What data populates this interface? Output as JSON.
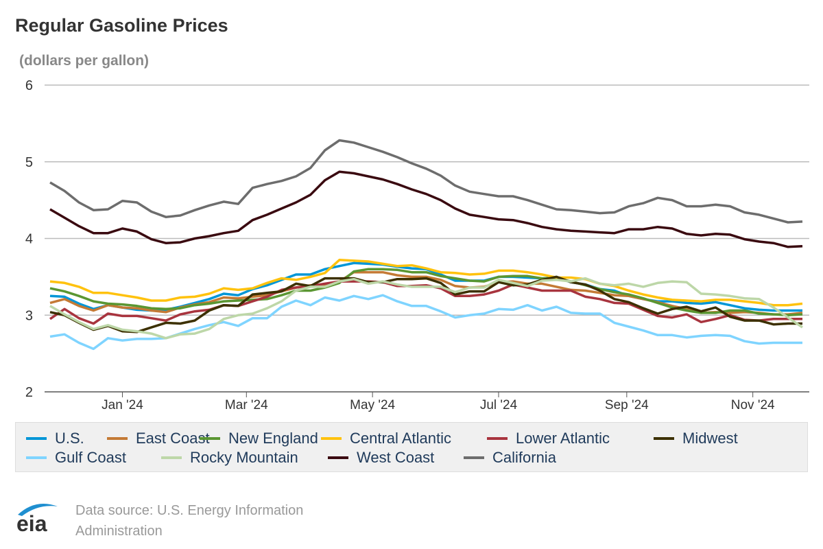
{
  "chart_data": {
    "type": "line",
    "title": "Regular Gasoline Prices",
    "ylabel": "(dollars per gallon)",
    "ylim": [
      2,
      6
    ],
    "yticks": [
      "2",
      "3",
      "4",
      "5",
      "6"
    ],
    "xticks": [
      {
        "date": "2024-01-01",
        "label": "Jan '24"
      },
      {
        "date": "2024-03-01",
        "label": "Mar '24"
      },
      {
        "date": "2024-05-01",
        "label": "May '24"
      },
      {
        "date": "2024-07-01",
        "label": "Jul '24"
      },
      {
        "date": "2024-09-01",
        "label": "Sep '24"
      },
      {
        "date": "2024-11-01",
        "label": "Nov '24"
      }
    ],
    "grid": true,
    "legend_position": "bottom",
    "x": [
      "2023-11-27",
      "2023-12-04",
      "2023-12-11",
      "2023-12-18",
      "2023-12-25",
      "2024-01-01",
      "2024-01-08",
      "2024-01-15",
      "2024-01-22",
      "2024-01-29",
      "2024-02-05",
      "2024-02-12",
      "2024-02-19",
      "2024-02-26",
      "2024-03-04",
      "2024-03-11",
      "2024-03-18",
      "2024-03-25",
      "2024-04-01",
      "2024-04-08",
      "2024-04-15",
      "2024-04-22",
      "2024-04-29",
      "2024-05-06",
      "2024-05-13",
      "2024-05-20",
      "2024-05-27",
      "2024-06-03",
      "2024-06-10",
      "2024-06-17",
      "2024-06-24",
      "2024-07-01",
      "2024-07-08",
      "2024-07-15",
      "2024-07-22",
      "2024-07-29",
      "2024-08-05",
      "2024-08-12",
      "2024-08-19",
      "2024-08-26",
      "2024-09-02",
      "2024-09-09",
      "2024-09-16",
      "2024-09-23",
      "2024-09-30",
      "2024-10-07",
      "2024-10-14",
      "2024-10-21",
      "2024-10-28",
      "2024-11-04",
      "2024-11-11",
      "2024-11-18",
      "2024-11-25"
    ],
    "series": [
      {
        "name": "U.S.",
        "color": "#0096d7",
        "values": [
          3.25,
          3.24,
          3.15,
          3.08,
          3.13,
          3.1,
          3.07,
          3.06,
          3.07,
          3.11,
          3.16,
          3.21,
          3.28,
          3.26,
          3.34,
          3.39,
          3.46,
          3.53,
          3.53,
          3.6,
          3.64,
          3.68,
          3.67,
          3.66,
          3.63,
          3.61,
          3.6,
          3.53,
          3.45,
          3.45,
          3.45,
          3.5,
          3.5,
          3.49,
          3.48,
          3.49,
          3.43,
          3.4,
          3.34,
          3.32,
          3.25,
          3.21,
          3.18,
          3.18,
          3.16,
          3.15,
          3.17,
          3.13,
          3.09,
          3.07,
          3.06,
          3.06,
          3.06
        ]
      },
      {
        "name": "East Coast",
        "color": "#c47a35",
        "values": [
          3.16,
          3.21,
          3.12,
          3.06,
          3.13,
          3.1,
          3.09,
          3.06,
          3.04,
          3.1,
          3.14,
          3.17,
          3.23,
          3.22,
          3.24,
          3.26,
          3.31,
          3.36,
          3.39,
          3.4,
          3.44,
          3.56,
          3.56,
          3.56,
          3.52,
          3.5,
          3.5,
          3.46,
          3.38,
          3.36,
          3.37,
          3.43,
          3.44,
          3.41,
          3.41,
          3.37,
          3.33,
          3.32,
          3.29,
          3.26,
          3.25,
          3.21,
          3.17,
          3.12,
          3.08,
          3.03,
          3.04,
          3.03,
          3.04,
          3.03,
          3.01,
          3.01,
          3.03
        ]
      },
      {
        "name": "New England",
        "color": "#5a9632",
        "values": [
          3.35,
          3.31,
          3.25,
          3.18,
          3.15,
          3.14,
          3.12,
          3.09,
          3.08,
          3.09,
          3.13,
          3.15,
          3.18,
          3.19,
          3.2,
          3.21,
          3.26,
          3.32,
          3.32,
          3.36,
          3.42,
          3.57,
          3.6,
          3.6,
          3.59,
          3.56,
          3.56,
          3.51,
          3.48,
          3.45,
          3.44,
          3.5,
          3.51,
          3.51,
          3.48,
          3.48,
          3.44,
          3.39,
          3.34,
          3.3,
          3.27,
          3.22,
          3.16,
          3.1,
          3.06,
          3.03,
          3.03,
          3.06,
          3.06,
          3.02,
          3.01,
          3.0,
          3.01
        ]
      },
      {
        "name": "Central Atlantic",
        "color": "#ffc20e",
        "values": [
          3.44,
          3.42,
          3.37,
          3.29,
          3.29,
          3.26,
          3.23,
          3.19,
          3.19,
          3.23,
          3.24,
          3.28,
          3.35,
          3.33,
          3.35,
          3.42,
          3.48,
          3.46,
          3.5,
          3.55,
          3.72,
          3.71,
          3.7,
          3.67,
          3.64,
          3.65,
          3.61,
          3.56,
          3.55,
          3.53,
          3.54,
          3.58,
          3.58,
          3.56,
          3.53,
          3.49,
          3.49,
          3.47,
          3.41,
          3.38,
          3.32,
          3.27,
          3.23,
          3.2,
          3.19,
          3.18,
          3.2,
          3.2,
          3.18,
          3.16,
          3.13,
          3.13,
          3.15
        ]
      },
      {
        "name": "Lower Atlantic",
        "color": "#a8343e",
        "values": [
          2.95,
          3.08,
          2.96,
          2.89,
          3.02,
          2.99,
          2.99,
          2.96,
          2.93,
          3.01,
          3.05,
          3.07,
          3.13,
          3.12,
          3.18,
          3.24,
          3.33,
          3.36,
          3.38,
          3.41,
          3.44,
          3.44,
          3.44,
          3.43,
          3.38,
          3.38,
          3.39,
          3.35,
          3.25,
          3.25,
          3.27,
          3.32,
          3.4,
          3.36,
          3.32,
          3.32,
          3.32,
          3.24,
          3.21,
          3.16,
          3.15,
          3.07,
          2.99,
          2.97,
          3.01,
          2.91,
          2.95,
          3.0,
          2.94,
          2.93,
          2.95,
          2.95,
          2.95
        ]
      },
      {
        "name": "Midwest",
        "color": "#3c3000",
        "values": [
          3.04,
          3.0,
          2.9,
          2.81,
          2.86,
          2.79,
          2.78,
          2.84,
          2.9,
          2.89,
          2.93,
          3.06,
          3.13,
          3.12,
          3.27,
          3.29,
          3.31,
          3.41,
          3.38,
          3.48,
          3.48,
          3.48,
          3.43,
          3.43,
          3.47,
          3.47,
          3.48,
          3.42,
          3.27,
          3.31,
          3.31,
          3.43,
          3.39,
          3.4,
          3.46,
          3.5,
          3.43,
          3.4,
          3.32,
          3.21,
          3.17,
          3.09,
          3.02,
          3.08,
          3.11,
          3.05,
          3.1,
          2.98,
          2.93,
          2.93,
          2.88,
          2.89,
          2.89
        ]
      },
      {
        "name": "Gulf Coast",
        "color": "#7fd4ff",
        "values": [
          2.72,
          2.75,
          2.64,
          2.56,
          2.7,
          2.67,
          2.69,
          2.69,
          2.7,
          2.76,
          2.82,
          2.87,
          2.91,
          2.86,
          2.96,
          2.96,
          3.11,
          3.19,
          3.13,
          3.23,
          3.19,
          3.25,
          3.21,
          3.26,
          3.18,
          3.12,
          3.12,
          3.05,
          2.97,
          3.0,
          3.02,
          3.08,
          3.07,
          3.13,
          3.06,
          3.11,
          3.03,
          3.02,
          3.02,
          2.9,
          2.85,
          2.8,
          2.74,
          2.74,
          2.71,
          2.73,
          2.74,
          2.73,
          2.66,
          2.63,
          2.64,
          2.64,
          2.64
        ]
      },
      {
        "name": "Rocky Mountain",
        "color": "#bdd7a8",
        "values": [
          3.12,
          3.01,
          2.91,
          2.82,
          2.87,
          2.81,
          2.79,
          2.76,
          2.7,
          2.75,
          2.76,
          2.82,
          2.95,
          3.0,
          3.02,
          3.09,
          3.18,
          3.32,
          3.37,
          3.37,
          3.44,
          3.47,
          3.41,
          3.44,
          3.4,
          3.37,
          3.37,
          3.37,
          3.3,
          3.36,
          3.36,
          3.46,
          3.42,
          3.38,
          3.45,
          3.46,
          3.44,
          3.48,
          3.41,
          3.39,
          3.41,
          3.37,
          3.42,
          3.44,
          3.43,
          3.28,
          3.27,
          3.25,
          3.22,
          3.21,
          3.1,
          2.97,
          2.84
        ]
      },
      {
        "name": "West Coast",
        "color": "#3a0a10",
        "values": [
          4.38,
          4.27,
          4.16,
          4.07,
          4.07,
          4.13,
          4.09,
          3.99,
          3.94,
          3.95,
          4.0,
          4.03,
          4.07,
          4.1,
          4.24,
          4.31,
          4.39,
          4.47,
          4.57,
          4.76,
          4.87,
          4.85,
          4.81,
          4.77,
          4.71,
          4.64,
          4.58,
          4.5,
          4.39,
          4.31,
          4.28,
          4.25,
          4.24,
          4.2,
          4.15,
          4.12,
          4.1,
          4.09,
          4.08,
          4.07,
          4.12,
          4.12,
          4.15,
          4.13,
          4.06,
          4.04,
          4.06,
          4.05,
          3.99,
          3.96,
          3.94,
          3.89,
          3.9
        ]
      },
      {
        "name": "California",
        "color": "#6d6d6d",
        "values": [
          4.73,
          4.62,
          4.47,
          4.37,
          4.38,
          4.49,
          4.47,
          4.35,
          4.28,
          4.3,
          4.37,
          4.43,
          4.48,
          4.45,
          4.66,
          4.71,
          4.75,
          4.81,
          4.92,
          5.15,
          5.28,
          5.25,
          5.19,
          5.13,
          5.06,
          4.98,
          4.91,
          4.82,
          4.69,
          4.61,
          4.58,
          4.55,
          4.55,
          4.5,
          4.44,
          4.38,
          4.37,
          4.35,
          4.33,
          4.34,
          4.42,
          4.46,
          4.53,
          4.5,
          4.42,
          4.42,
          4.44,
          4.42,
          4.34,
          4.31,
          4.26,
          4.21,
          4.22
        ]
      }
    ]
  },
  "footer": {
    "logo_text": "eia",
    "source_line1": "Data source: U.S. Energy Information",
    "source_line2": "Administration"
  }
}
